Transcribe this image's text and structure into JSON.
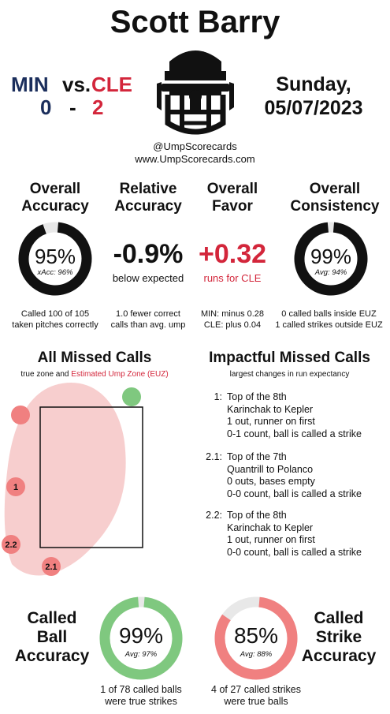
{
  "umpire_name": "Scott Barry",
  "game": {
    "away_team": "MIN",
    "home_team": "CLE",
    "versus": "vs.",
    "away_score": "0",
    "score_dash": "-",
    "home_score": "2",
    "day": "Sunday,",
    "date": "05/07/2023"
  },
  "credits": {
    "handle": "@UmpScorecards",
    "site": "www.UmpScorecards.com"
  },
  "stats": {
    "accuracy": {
      "head1": "Overall",
      "head2": "Accuracy",
      "value": "95%",
      "sub": "xAcc: 96%",
      "fraction": 0.95,
      "desc1": "Called 100 of 105",
      "desc2": "taken pitches correctly"
    },
    "relative": {
      "head1": "Relative",
      "head2": "Accuracy",
      "value": "-0.9%",
      "sub": "below expected",
      "desc1": "1.0 fewer correct",
      "desc2": "calls than avg. ump"
    },
    "favor": {
      "head1": "Overall",
      "head2": "Favor",
      "value": "+0.32",
      "sub": "runs for CLE",
      "desc1": "MIN: minus 0.28",
      "desc2": "CLE: plus 0.04"
    },
    "consistency": {
      "head1": "Overall",
      "head2": "Consistency",
      "value": "99%",
      "sub": "Avg: 94%",
      "fraction": 0.99,
      "desc1": "0 called balls inside EUZ",
      "desc2": "1 called strikes outside EUZ"
    }
  },
  "missed_calls": {
    "title": "All Missed Calls",
    "sub_prefix": "true zone and",
    "sub_euz": "Estimated Ump Zone (EUZ)",
    "points": [
      {
        "label": "",
        "color": "#f08080"
      },
      {
        "label": "",
        "color": "#7fc87f"
      },
      {
        "label": "1",
        "color": "#f08080"
      },
      {
        "label": "2.2",
        "color": "#f08080"
      },
      {
        "label": "2.1",
        "color": "#f08080"
      }
    ]
  },
  "impactful": {
    "title": "Impactful Missed Calls",
    "sub": "largest changes in run expectancy",
    "calls": [
      {
        "num": "1:",
        "lines": [
          "Top of the 8th",
          "Karinchak to Kepler",
          "1 out, runner on first",
          "0-1 count, ball is called a strike"
        ]
      },
      {
        "num": "2.1:",
        "lines": [
          "Top of the 7th",
          "Quantrill to Polanco",
          "0 outs, bases empty",
          "0-0 count, ball is called a strike"
        ]
      },
      {
        "num": "2.2:",
        "lines": [
          "Top of the 8th",
          "Karinchak to Kepler",
          "1 out, runner on first",
          "0-0 count, ball is called a strike"
        ]
      }
    ]
  },
  "called_ball": {
    "head": [
      "Called",
      "Ball",
      "Accuracy"
    ],
    "value": "99%",
    "sub": "Avg: 97%",
    "fraction": 0.99,
    "color": "#7fc87f",
    "desc1": "1 of 78 called balls",
    "desc2": "were true strikes"
  },
  "called_strike": {
    "head": [
      "Called",
      "Strike",
      "Accuracy"
    ],
    "value": "85%",
    "sub": "Avg: 88%",
    "fraction": 0.85,
    "color": "#f08080",
    "desc1": "4 of 27 called strikes",
    "desc2": "were true balls"
  }
}
